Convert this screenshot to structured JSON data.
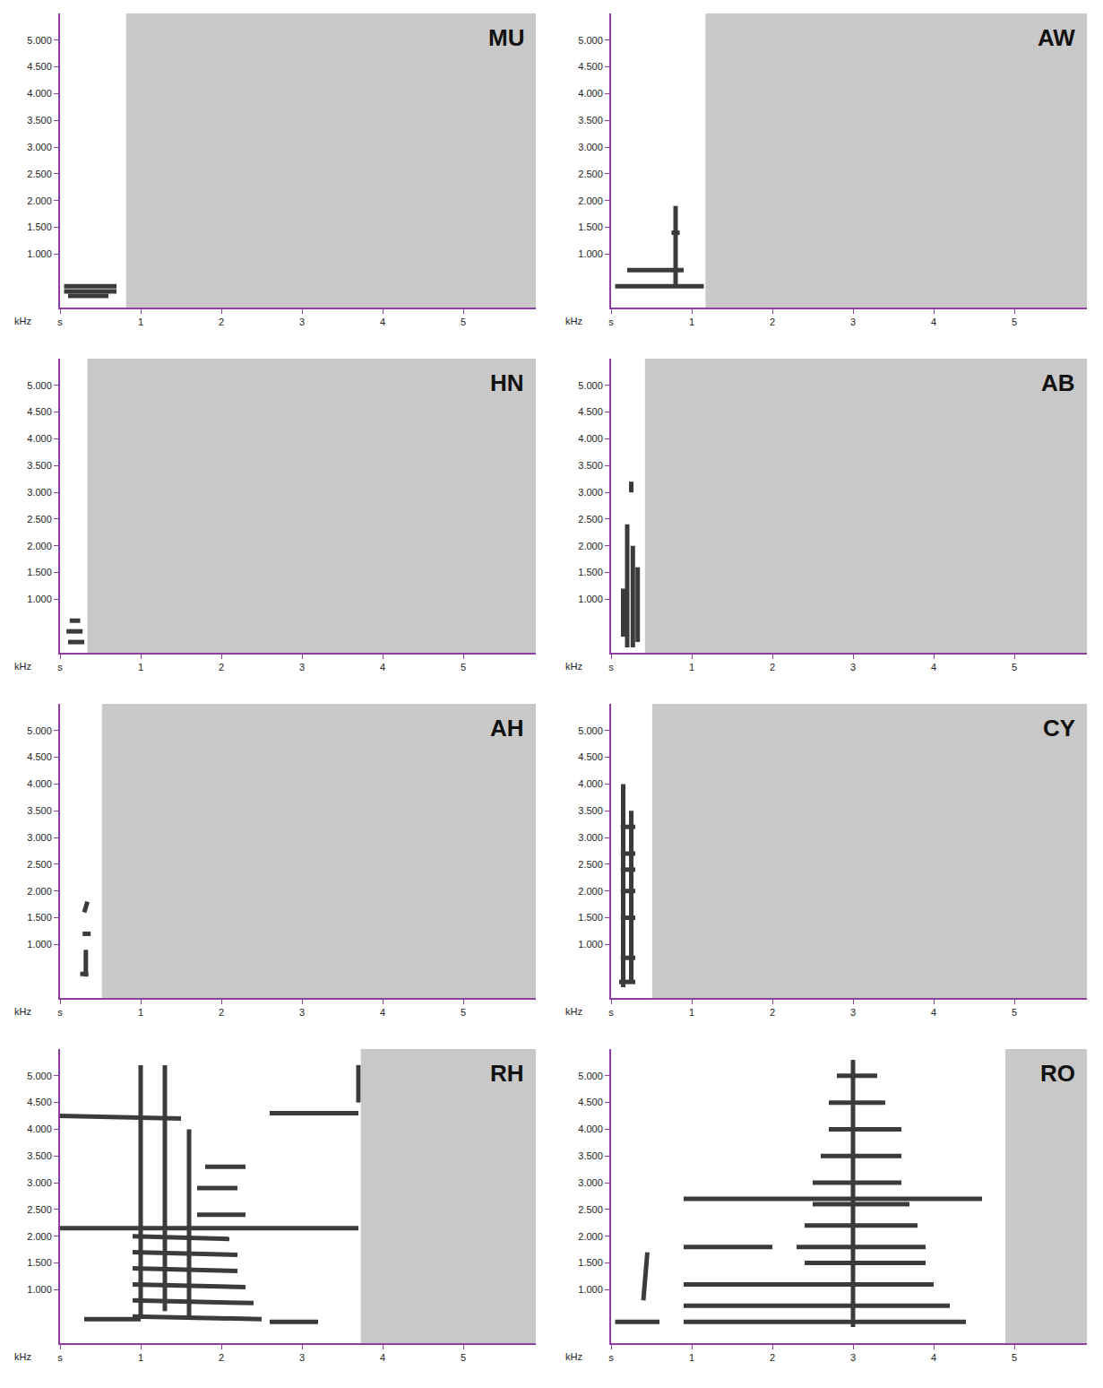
{
  "chart_data": [
    {
      "type": "spectrogram",
      "title": "MU",
      "y_label": "kHz",
      "duration": 0.82,
      "color": "#1a1a1a",
      "xlim": [
        0,
        5.9
      ],
      "xticks": [
        {
          "value": 0,
          "label": "s"
        },
        1,
        2,
        3,
        4,
        5
      ],
      "ylim": [
        0,
        5.5
      ],
      "yticks": [
        {
          "value": 1,
          "label": "1.000"
        },
        {
          "value": 1.5,
          "label": "1.500"
        },
        {
          "value": 2,
          "label": "2.000"
        },
        {
          "value": 2.5,
          "label": "2.500"
        },
        {
          "value": 3,
          "label": "3.000"
        },
        {
          "value": 3.5,
          "label": "3.500"
        },
        {
          "value": 4,
          "label": "4.000"
        },
        {
          "value": 4.5,
          "label": "4.500"
        },
        {
          "value": 5,
          "label": "5.000"
        }
      ],
      "segments": [
        [
          0.05,
          0.7,
          0.3,
          0.3
        ],
        [
          0.05,
          0.7,
          0.4,
          0.4
        ],
        [
          0.1,
          0.6,
          0.22,
          0.22
        ]
      ]
    },
    {
      "type": "spectrogram",
      "title": "AW",
      "y_label": "kHz",
      "duration": 1.17,
      "color": "#1a1a1a",
      "xlim": [
        0,
        5.9
      ],
      "xticks": [
        {
          "value": 0,
          "label": "s"
        },
        1,
        2,
        3,
        4,
        5
      ],
      "ylim": [
        0,
        5.5
      ],
      "yticks": [
        {
          "value": 1,
          "label": "1.000"
        },
        {
          "value": 1.5,
          "label": "1.500"
        },
        {
          "value": 2,
          "label": "2.000"
        },
        {
          "value": 2.5,
          "label": "2.500"
        },
        {
          "value": 3,
          "label": "3.000"
        },
        {
          "value": 3.5,
          "label": "3.500"
        },
        {
          "value": 4,
          "label": "4.000"
        },
        {
          "value": 4.5,
          "label": "4.500"
        },
        {
          "value": 5,
          "label": "5.000"
        }
      ],
      "segments": [
        [
          0.05,
          1.15,
          0.4,
          0.4
        ],
        [
          0.2,
          0.9,
          0.7,
          0.7
        ],
        [
          0.8,
          0.8,
          0.4,
          1.9
        ],
        [
          0.75,
          0.85,
          1.4,
          1.4
        ]
      ]
    },
    {
      "type": "spectrogram",
      "title": "HN",
      "y_label": "kHz",
      "duration": 0.34,
      "color": "#1a1a1a",
      "xlim": [
        0,
        5.9
      ],
      "xticks": [
        {
          "value": 0,
          "label": "s"
        },
        1,
        2,
        3,
        4,
        5
      ],
      "ylim": [
        0,
        5.5
      ],
      "yticks": [
        {
          "value": 1,
          "label": "1.000"
        },
        {
          "value": 1.5,
          "label": "1.500"
        },
        {
          "value": 2,
          "label": "2.000"
        },
        {
          "value": 2.5,
          "label": "2.500"
        },
        {
          "value": 3,
          "label": "3.000"
        },
        {
          "value": 3.5,
          "label": "3.500"
        },
        {
          "value": 4,
          "label": "4.000"
        },
        {
          "value": 4.5,
          "label": "4.500"
        },
        {
          "value": 5,
          "label": "5.000"
        }
      ],
      "segments": [
        [
          0.1,
          0.3,
          0.2,
          0.2
        ],
        [
          0.08,
          0.28,
          0.4,
          0.4
        ],
        [
          0.12,
          0.25,
          0.6,
          0.6
        ]
      ]
    },
    {
      "type": "spectrogram",
      "title": "AB",
      "y_label": "kHz",
      "duration": 0.42,
      "color": "#1a1a1a",
      "xlim": [
        0,
        5.9
      ],
      "xticks": [
        {
          "value": 0,
          "label": "s"
        },
        1,
        2,
        3,
        4,
        5
      ],
      "ylim": [
        0,
        5.5
      ],
      "yticks": [
        {
          "value": 1,
          "label": "1.000"
        },
        {
          "value": 1.5,
          "label": "1.500"
        },
        {
          "value": 2,
          "label": "2.000"
        },
        {
          "value": 2.5,
          "label": "2.500"
        },
        {
          "value": 3,
          "label": "3.000"
        },
        {
          "value": 3.5,
          "label": "3.500"
        },
        {
          "value": 4,
          "label": "4.000"
        },
        {
          "value": 4.5,
          "label": "4.500"
        },
        {
          "value": 5,
          "label": "5.000"
        }
      ],
      "segments": [
        [
          0.2,
          0.2,
          0.1,
          2.4
        ],
        [
          0.27,
          0.27,
          0.1,
          2.0
        ],
        [
          0.33,
          0.33,
          0.2,
          1.6
        ],
        [
          0.15,
          0.15,
          0.3,
          1.2
        ],
        [
          0.25,
          0.25,
          3.0,
          3.2
        ]
      ]
    },
    {
      "type": "spectrogram",
      "title": "AH",
      "y_label": "kHz",
      "duration": 0.52,
      "color": "#1a1a1a",
      "xlim": [
        0,
        5.9
      ],
      "xticks": [
        {
          "value": 0,
          "label": "s"
        },
        1,
        2,
        3,
        4,
        5
      ],
      "ylim": [
        0,
        5.5
      ],
      "yticks": [
        {
          "value": 1,
          "label": "1.000"
        },
        {
          "value": 1.5,
          "label": "1.500"
        },
        {
          "value": 2,
          "label": "2.000"
        },
        {
          "value": 2.5,
          "label": "2.500"
        },
        {
          "value": 3,
          "label": "3.000"
        },
        {
          "value": 3.5,
          "label": "3.500"
        },
        {
          "value": 4,
          "label": "4.000"
        },
        {
          "value": 4.5,
          "label": "4.500"
        },
        {
          "value": 5,
          "label": "5.000"
        }
      ],
      "segments": [
        [
          0.25,
          0.35,
          0.45,
          0.45
        ],
        [
          0.28,
          0.38,
          1.2,
          1.2
        ],
        [
          0.3,
          0.34,
          1.6,
          1.8
        ],
        [
          0.32,
          0.32,
          0.4,
          0.9
        ]
      ]
    },
    {
      "type": "spectrogram",
      "title": "CY",
      "y_label": "kHz",
      "duration": 0.51,
      "color": "#1a1a1a",
      "xlim": [
        0,
        5.9
      ],
      "xticks": [
        {
          "value": 0,
          "label": "s"
        },
        1,
        2,
        3,
        4,
        5
      ],
      "ylim": [
        0,
        5.5
      ],
      "yticks": [
        {
          "value": 1,
          "label": "1.000"
        },
        {
          "value": 1.5,
          "label": "1.500"
        },
        {
          "value": 2,
          "label": "2.000"
        },
        {
          "value": 2.5,
          "label": "2.500"
        },
        {
          "value": 3,
          "label": "3.000"
        },
        {
          "value": 3.5,
          "label": "3.500"
        },
        {
          "value": 4,
          "label": "4.000"
        },
        {
          "value": 4.5,
          "label": "4.500"
        },
        {
          "value": 5,
          "label": "5.000"
        }
      ],
      "segments": [
        [
          0.15,
          0.15,
          0.2,
          4.0
        ],
        [
          0.25,
          0.25,
          0.3,
          3.5
        ],
        [
          0.1,
          0.3,
          0.3,
          0.3
        ],
        [
          0.12,
          0.3,
          0.75,
          0.75
        ],
        [
          0.12,
          0.3,
          1.5,
          1.5
        ],
        [
          0.12,
          0.3,
          2.0,
          2.0
        ],
        [
          0.12,
          0.3,
          2.4,
          2.4
        ],
        [
          0.12,
          0.3,
          2.7,
          2.7
        ],
        [
          0.12,
          0.3,
          3.2,
          3.2
        ]
      ]
    },
    {
      "type": "spectrogram",
      "title": "RH",
      "y_label": "kHz",
      "duration": 3.73,
      "color": "#1a1a1a",
      "xlim": [
        0,
        5.9
      ],
      "xticks": [
        {
          "value": 0,
          "label": "s"
        },
        1,
        2,
        3,
        4,
        5
      ],
      "ylim": [
        0,
        5.5
      ],
      "yticks": [
        {
          "value": 1,
          "label": "1.000"
        },
        {
          "value": 1.5,
          "label": "1.500"
        },
        {
          "value": 2,
          "label": "2.000"
        },
        {
          "value": 2.5,
          "label": "2.500"
        },
        {
          "value": 3,
          "label": "3.000"
        },
        {
          "value": 3.5,
          "label": "3.500"
        },
        {
          "value": 4,
          "label": "4.000"
        },
        {
          "value": 4.5,
          "label": "4.500"
        },
        {
          "value": 5,
          "label": "5.000"
        }
      ],
      "segments": [
        [
          0.0,
          1.5,
          4.25,
          4.2
        ],
        [
          2.6,
          3.7,
          4.3,
          4.3
        ],
        [
          0.0,
          3.7,
          2.15,
          2.15
        ],
        [
          0.3,
          1.0,
          0.45,
          0.45
        ],
        [
          0.9,
          2.5,
          0.5,
          0.45
        ],
        [
          0.9,
          2.4,
          0.8,
          0.75
        ],
        [
          0.9,
          2.3,
          1.1,
          1.05
        ],
        [
          0.9,
          2.2,
          1.4,
          1.35
        ],
        [
          0.9,
          2.2,
          1.7,
          1.65
        ],
        [
          0.9,
          2.1,
          2.0,
          1.95
        ],
        [
          1.7,
          2.3,
          2.4,
          2.4
        ],
        [
          1.7,
          2.2,
          2.9,
          2.9
        ],
        [
          1.8,
          2.3,
          3.3,
          3.3
        ],
        [
          1.0,
          1.0,
          0.5,
          5.2
        ],
        [
          1.3,
          1.3,
          0.6,
          5.2
        ],
        [
          1.6,
          1.6,
          0.5,
          4.0
        ],
        [
          2.6,
          3.2,
          0.4,
          0.4
        ],
        [
          3.7,
          3.7,
          4.5,
          5.2
        ]
      ]
    },
    {
      "type": "spectrogram",
      "title": "RO",
      "y_label": "kHz",
      "duration": 4.89,
      "color": "#1a1a1a",
      "xlim": [
        0,
        5.9
      ],
      "xticks": [
        {
          "value": 0,
          "label": "s"
        },
        1,
        2,
        3,
        4,
        5
      ],
      "ylim": [
        0,
        5.5
      ],
      "yticks": [
        {
          "value": 1,
          "label": "1.000"
        },
        {
          "value": 1.5,
          "label": "1.500"
        },
        {
          "value": 2,
          "label": "2.000"
        },
        {
          "value": 2.5,
          "label": "2.500"
        },
        {
          "value": 3,
          "label": "3.000"
        },
        {
          "value": 3.5,
          "label": "3.500"
        },
        {
          "value": 4,
          "label": "4.000"
        },
        {
          "value": 4.5,
          "label": "4.500"
        },
        {
          "value": 5,
          "label": "5.000"
        }
      ],
      "segments": [
        [
          0.05,
          0.6,
          0.4,
          0.4
        ],
        [
          0.4,
          0.45,
          0.8,
          1.7
        ],
        [
          0.9,
          4.4,
          0.4,
          0.4
        ],
        [
          0.9,
          4.2,
          0.7,
          0.7
        ],
        [
          0.9,
          4.0,
          1.1,
          1.1
        ],
        [
          0.9,
          2.0,
          1.8,
          1.8
        ],
        [
          2.4,
          3.9,
          1.5,
          1.5
        ],
        [
          2.3,
          3.9,
          1.8,
          1.8
        ],
        [
          2.4,
          3.8,
          2.2,
          2.2
        ],
        [
          2.5,
          3.7,
          2.6,
          2.6
        ],
        [
          2.5,
          3.6,
          3.0,
          3.0
        ],
        [
          2.6,
          3.6,
          3.5,
          3.5
        ],
        [
          2.7,
          3.6,
          4.0,
          4.0
        ],
        [
          2.7,
          3.4,
          4.5,
          4.5
        ],
        [
          2.8,
          3.3,
          5.0,
          5.0
        ],
        [
          0.9,
          4.6,
          2.7,
          2.7
        ],
        [
          3.0,
          3.0,
          0.3,
          5.3
        ]
      ]
    }
  ]
}
